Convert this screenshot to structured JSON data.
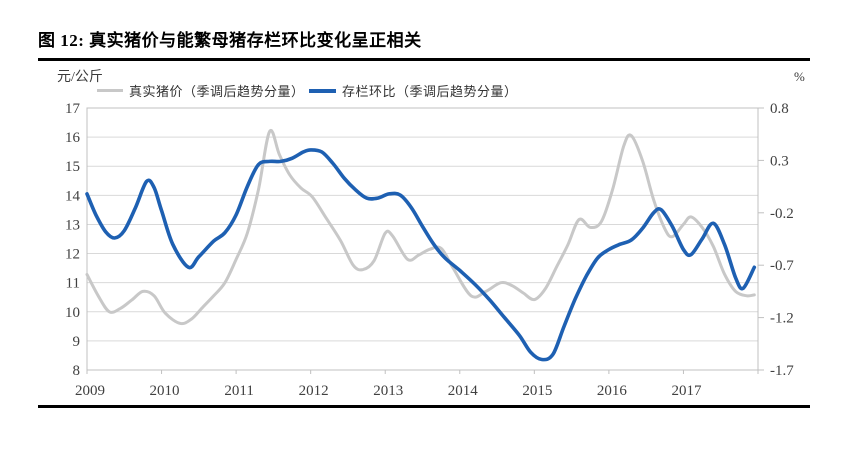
{
  "page": {
    "title": "图 12: 真实猪价与能繁母猪存栏环比变化呈正相关"
  },
  "chart_data": {
    "type": "line",
    "title": "图 12: 真实猪价与能繁母猪存栏环比变化呈正相关",
    "x_axis": {
      "tick_labels": [
        "2009",
        "2010",
        "2011",
        "2012",
        "2013",
        "2014",
        "2015",
        "2016",
        "2017"
      ],
      "range_years": [
        2009,
        2018
      ],
      "grid": false
    },
    "y_left_axis": {
      "unit_label": "元/公斤",
      "tick_labels": [
        "17",
        "16",
        "15",
        "14",
        "13",
        "12",
        "11",
        "10",
        "9",
        "8"
      ],
      "range": [
        8,
        17
      ],
      "grid": true
    },
    "y_right_axis": {
      "unit_label": "%",
      "tick_labels": [
        "0.8",
        "0.3",
        "-0.2",
        "-0.7",
        "-1.2",
        "-1.7"
      ],
      "range": [
        -1.7,
        0.8
      ]
    },
    "legend_position": "top",
    "series": [
      {
        "name": "真实猪价（季调后趋势分量）",
        "axis": "left",
        "color": "#c8c8c8",
        "stroke_width": 3,
        "points": [
          [
            2009.0,
            11.28
          ],
          [
            2009.15,
            10.55
          ],
          [
            2009.3,
            10.0
          ],
          [
            2009.45,
            10.12
          ],
          [
            2009.6,
            10.4
          ],
          [
            2009.75,
            10.7
          ],
          [
            2009.9,
            10.55
          ],
          [
            2010.05,
            9.95
          ],
          [
            2010.25,
            9.6
          ],
          [
            2010.4,
            9.75
          ],
          [
            2010.55,
            10.15
          ],
          [
            2010.7,
            10.55
          ],
          [
            2010.85,
            11.0
          ],
          [
            2011.0,
            11.8
          ],
          [
            2011.15,
            12.7
          ],
          [
            2011.3,
            14.2
          ],
          [
            2011.45,
            16.2
          ],
          [
            2011.58,
            15.4
          ],
          [
            2011.72,
            14.7
          ],
          [
            2011.87,
            14.25
          ],
          [
            2012.02,
            13.95
          ],
          [
            2012.2,
            13.25
          ],
          [
            2012.4,
            12.45
          ],
          [
            2012.57,
            11.6
          ],
          [
            2012.7,
            11.45
          ],
          [
            2012.85,
            11.75
          ],
          [
            2013.0,
            12.7
          ],
          [
            2013.1,
            12.6
          ],
          [
            2013.3,
            11.8
          ],
          [
            2013.45,
            11.95
          ],
          [
            2013.6,
            12.15
          ],
          [
            2013.75,
            12.18
          ],
          [
            2013.9,
            11.55
          ],
          [
            2014.15,
            10.55
          ],
          [
            2014.35,
            10.7
          ],
          [
            2014.55,
            11.0
          ],
          [
            2014.7,
            10.9
          ],
          [
            2014.85,
            10.65
          ],
          [
            2015.0,
            10.42
          ],
          [
            2015.15,
            10.8
          ],
          [
            2015.3,
            11.55
          ],
          [
            2015.45,
            12.3
          ],
          [
            2015.6,
            13.17
          ],
          [
            2015.75,
            12.9
          ],
          [
            2015.9,
            13.1
          ],
          [
            2016.05,
            14.2
          ],
          [
            2016.2,
            15.7
          ],
          [
            2016.3,
            16.05
          ],
          [
            2016.45,
            15.2
          ],
          [
            2016.6,
            13.85
          ],
          [
            2016.75,
            12.85
          ],
          [
            2016.85,
            12.58
          ],
          [
            2017.0,
            13.0
          ],
          [
            2017.1,
            13.26
          ],
          [
            2017.25,
            12.9
          ],
          [
            2017.4,
            12.25
          ],
          [
            2017.55,
            11.3
          ],
          [
            2017.7,
            10.7
          ],
          [
            2017.85,
            10.55
          ],
          [
            2017.95,
            10.58
          ]
        ]
      },
      {
        "name": "存栏环比（季调后趋势分量）",
        "axis": "right",
        "color": "#1e60b2",
        "stroke_width": 3.6,
        "points": [
          [
            2009.0,
            -0.02
          ],
          [
            2009.12,
            -0.22
          ],
          [
            2009.25,
            -0.38
          ],
          [
            2009.37,
            -0.44
          ],
          [
            2009.5,
            -0.37
          ],
          [
            2009.65,
            -0.15
          ],
          [
            2009.8,
            0.1
          ],
          [
            2009.9,
            0.04
          ],
          [
            2010.0,
            -0.18
          ],
          [
            2010.15,
            -0.5
          ],
          [
            2010.36,
            -0.72
          ],
          [
            2010.5,
            -0.62
          ],
          [
            2010.7,
            -0.47
          ],
          [
            2010.85,
            -0.39
          ],
          [
            2011.0,
            -0.22
          ],
          [
            2011.15,
            0.05
          ],
          [
            2011.3,
            0.26
          ],
          [
            2011.45,
            0.29
          ],
          [
            2011.6,
            0.29
          ],
          [
            2011.75,
            0.32
          ],
          [
            2011.9,
            0.38
          ],
          [
            2012.0,
            0.4
          ],
          [
            2012.15,
            0.38
          ],
          [
            2012.3,
            0.27
          ],
          [
            2012.45,
            0.13
          ],
          [
            2012.6,
            0.02
          ],
          [
            2012.75,
            -0.06
          ],
          [
            2012.9,
            -0.06
          ],
          [
            2013.05,
            -0.02
          ],
          [
            2013.2,
            -0.03
          ],
          [
            2013.35,
            -0.15
          ],
          [
            2013.5,
            -0.33
          ],
          [
            2013.65,
            -0.5
          ],
          [
            2013.8,
            -0.63
          ],
          [
            2014.0,
            -0.75
          ],
          [
            2014.2,
            -0.88
          ],
          [
            2014.4,
            -1.03
          ],
          [
            2014.6,
            -1.2
          ],
          [
            2014.8,
            -1.37
          ],
          [
            2014.95,
            -1.53
          ],
          [
            2015.1,
            -1.6
          ],
          [
            2015.25,
            -1.55
          ],
          [
            2015.4,
            -1.28
          ],
          [
            2015.55,
            -1.02
          ],
          [
            2015.7,
            -0.8
          ],
          [
            2015.85,
            -0.63
          ],
          [
            2016.0,
            -0.55
          ],
          [
            2016.15,
            -0.5
          ],
          [
            2016.3,
            -0.46
          ],
          [
            2016.45,
            -0.35
          ],
          [
            2016.6,
            -0.2
          ],
          [
            2016.7,
            -0.17
          ],
          [
            2016.85,
            -0.33
          ],
          [
            2017.0,
            -0.55
          ],
          [
            2017.1,
            -0.6
          ],
          [
            2017.25,
            -0.45
          ],
          [
            2017.4,
            -0.3
          ],
          [
            2017.55,
            -0.5
          ],
          [
            2017.7,
            -0.82
          ],
          [
            2017.8,
            -0.92
          ],
          [
            2017.95,
            -0.72
          ]
        ]
      }
    ]
  },
  "colors": {
    "rule": "#000000",
    "gridline": "#d9d9d9",
    "plot_border": "#c0c0c0",
    "tick_text": "#404040",
    "legend_text": "#333333"
  }
}
